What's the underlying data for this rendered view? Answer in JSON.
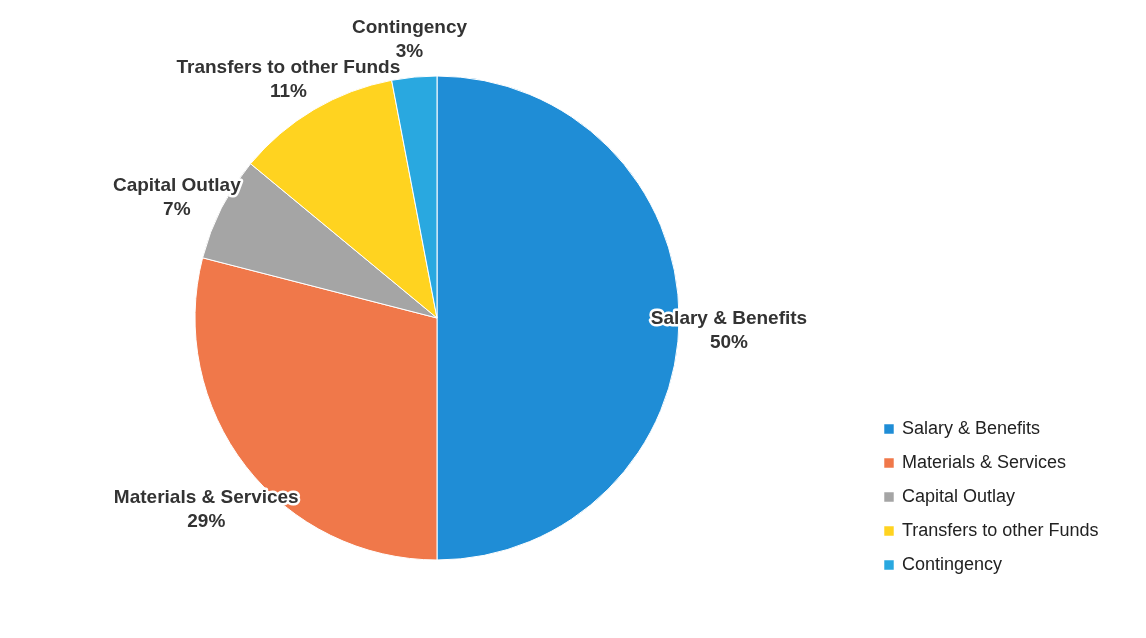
{
  "chart_data": {
    "type": "pie",
    "categories": [
      "Salary & Benefits",
      "Materials & Services",
      "Capital Outlay",
      "Transfers to other Funds",
      "Contingency"
    ],
    "values": [
      50,
      29,
      7,
      11,
      3
    ],
    "colors": [
      "#1f8dd6",
      "#f0784a",
      "#a5a5a5",
      "#ffd320",
      "#29a8e0"
    ],
    "value_labels": [
      "50%",
      "29%",
      "7%",
      "11%",
      "3%"
    ],
    "legend": "bottom right"
  }
}
